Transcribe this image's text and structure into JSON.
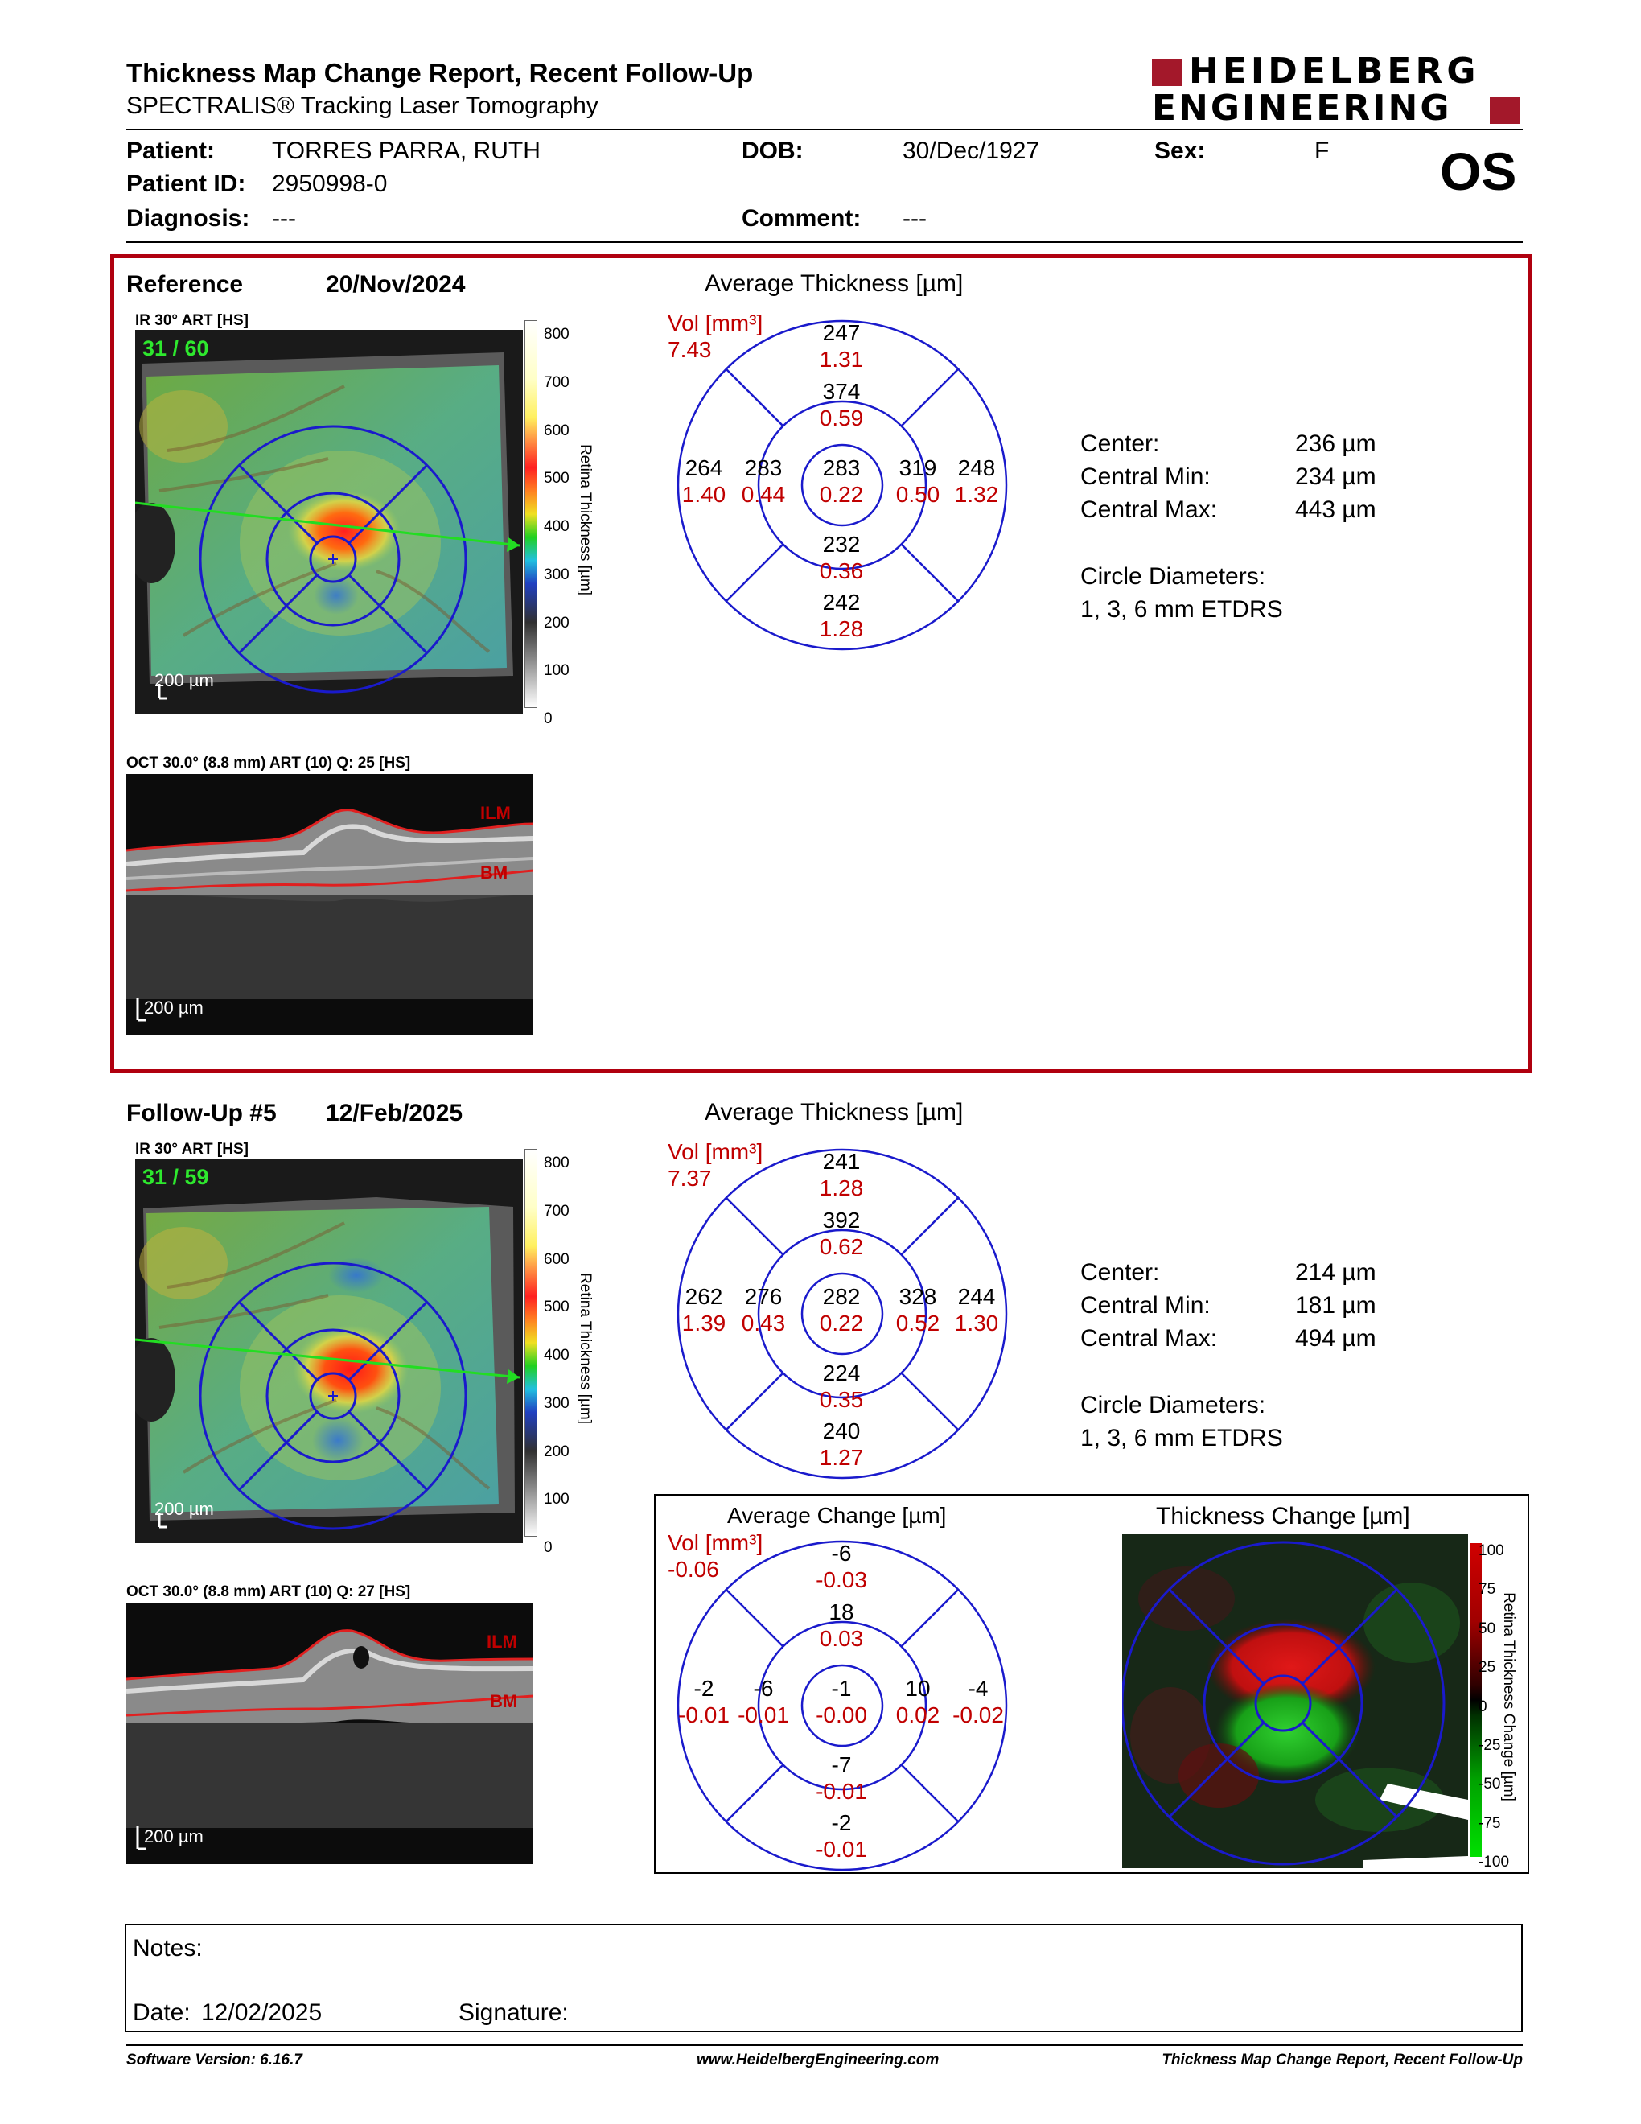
{
  "header": {
    "title": "Thickness Map Change Report, Recent Follow-Up",
    "subtitle": "SPECTRALIS® Tracking Laser Tomography",
    "logo_line1": "HEIDELBERG",
    "logo_line2": "ENGINEERING",
    "eye": "OS"
  },
  "patient": {
    "patient_label": "Patient:",
    "patient_value": "TORRES PARRA, RUTH",
    "dob_label": "DOB:",
    "dob_value": "30/Dec/1927",
    "sex_label": "Sex:",
    "sex_value": "F",
    "id_label": "Patient ID:",
    "id_value": "2950998-0",
    "diagnosis_label": "Diagnosis:",
    "diagnosis_value": "---",
    "comment_label": "Comment:",
    "comment_value": "---"
  },
  "colorbar": {
    "label": "Retina Thickness [µm]",
    "ticks": [
      "800",
      "700",
      "600",
      "500",
      "400",
      "300",
      "200",
      "100",
      "0"
    ]
  },
  "change_colorbar": {
    "label": "Retina Thickness Change [µm]",
    "ticks": [
      "100",
      "75",
      "50",
      "25",
      "0",
      "-25",
      "-50",
      "-75",
      "-100"
    ]
  },
  "reference": {
    "title": "Reference",
    "date": "20/Nov/2024",
    "ir_label": "IR 30° ART [HS]",
    "ir_counter": "31 / 60",
    "ir_scale": "200 µm",
    "oct_label": "OCT 30.0° (8.8 mm) ART (10) Q: 25 [HS]",
    "oct_scale": "200 µm",
    "ilm": "ILM",
    "bm": "BM",
    "etdrs": {
      "heading": "Average Thickness [µm]",
      "vol_label": "Vol [mm³]",
      "vol_total": "7.43",
      "outer_top": {
        "t": "247",
        "v": "1.31"
      },
      "inner_top": {
        "t": "374",
        "v": "0.59"
      },
      "outer_left": {
        "t": "264",
        "v": "1.40"
      },
      "inner_left": {
        "t": "283",
        "v": "0.44"
      },
      "center": {
        "t": "283",
        "v": "0.22"
      },
      "inner_right": {
        "t": "319",
        "v": "0.50"
      },
      "outer_right": {
        "t": "248",
        "v": "1.32"
      },
      "inner_bottom": {
        "t": "232",
        "v": "0.36"
      },
      "outer_bottom": {
        "t": "242",
        "v": "1.28"
      }
    },
    "stats": {
      "center_label": "Center:",
      "center_value": "236 µm",
      "min_label": "Central Min:",
      "min_value": "234 µm",
      "max_label": "Central Max:",
      "max_value": "443 µm",
      "diam_label": "Circle Diameters:",
      "diam_value": "1, 3, 6 mm ETDRS"
    }
  },
  "followup": {
    "title": "Follow-Up #5",
    "date": "12/Feb/2025",
    "ir_label": "IR 30° ART [HS]",
    "ir_counter": "31 / 59",
    "ir_scale": "200 µm",
    "oct_label": "OCT 30.0° (8.8 mm) ART (10) Q: 27 [HS]",
    "oct_scale": "200 µm",
    "ilm": "ILM",
    "bm": "BM",
    "etdrs": {
      "heading": "Average Thickness [µm]",
      "vol_label": "Vol [mm³]",
      "vol_total": "7.37",
      "outer_top": {
        "t": "241",
        "v": "1.28"
      },
      "inner_top": {
        "t": "392",
        "v": "0.62"
      },
      "outer_left": {
        "t": "262",
        "v": "1.39"
      },
      "inner_left": {
        "t": "276",
        "v": "0.43"
      },
      "center": {
        "t": "282",
        "v": "0.22"
      },
      "inner_right": {
        "t": "328",
        "v": "0.52"
      },
      "outer_right": {
        "t": "244",
        "v": "1.30"
      },
      "inner_bottom": {
        "t": "224",
        "v": "0.35"
      },
      "outer_bottom": {
        "t": "240",
        "v": "1.27"
      }
    },
    "stats": {
      "center_label": "Center:",
      "center_value": "214 µm",
      "min_label": "Central Min:",
      "min_value": "181 µm",
      "max_label": "Central Max:",
      "max_value": "494 µm",
      "diam_label": "Circle Diameters:",
      "diam_value": "1, 3, 6 mm ETDRS"
    }
  },
  "change": {
    "heading": "Average Change [µm]",
    "map_heading": "Thickness Change [µm]",
    "vol_label": "Vol [mm³]",
    "vol_total": "-0.06",
    "outer_top": {
      "t": "-6",
      "v": "-0.03"
    },
    "inner_top": {
      "t": "18",
      "v": "0.03"
    },
    "outer_left": {
      "t": "-2",
      "v": "-0.01"
    },
    "inner_left": {
      "t": "-6",
      "v": "-0.01"
    },
    "center": {
      "t": "-1",
      "v": "-0.00"
    },
    "inner_right": {
      "t": "10",
      "v": "0.02"
    },
    "outer_right": {
      "t": "-4",
      "v": "-0.02"
    },
    "inner_bottom": {
      "t": "-7",
      "v": "-0.01"
    },
    "outer_bottom": {
      "t": "-2",
      "v": "-0.01"
    }
  },
  "notes": {
    "notes_label": "Notes:",
    "date_label": "Date:",
    "date_value": "12/02/2025",
    "signature_label": "Signature:"
  },
  "footer": {
    "software": "Software Version: 6.16.7",
    "website": "www.HeidelbergEngineering.com",
    "report_name": "Thickness Map Change Report, Recent Follow-Up"
  },
  "colors": {
    "frame_red": "#b0000f",
    "grid_blue": "#1a1acc",
    "volume_red": "#cc0000",
    "counter_green": "#2ee82e"
  }
}
